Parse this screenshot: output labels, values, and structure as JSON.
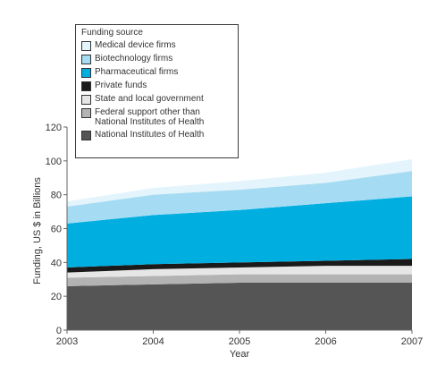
{
  "chart_data": {
    "type": "area",
    "stacked": true,
    "x": [
      "2003",
      "2004",
      "2005",
      "2006",
      "2007"
    ],
    "xlabel": "Year",
    "ylabel": "Funding, US $ in Billions",
    "ylim": [
      0,
      120
    ],
    "yticks": [
      "0",
      "20",
      "40",
      "60",
      "80",
      "100",
      "120"
    ],
    "grid": false,
    "legend_title": "Funding source",
    "legend_position": "top-left",
    "series": [
      {
        "name": "National Institutes of Health",
        "color": "#555555",
        "values": [
          26,
          27,
          28,
          28,
          28
        ]
      },
      {
        "name": "Federal support other than National Institutes of Health",
        "color": "#b3b3b3",
        "values": [
          5,
          5,
          5,
          5,
          5
        ]
      },
      {
        "name": "State and local government",
        "color": "#e6e6e6",
        "values": [
          3,
          4,
          4,
          5,
          5
        ]
      },
      {
        "name": "Private funds",
        "color": "#1a1a1a",
        "values": [
          3,
          3,
          3,
          3,
          4
        ]
      },
      {
        "name": "Pharmaceutical firms",
        "color": "#00aee0",
        "values": [
          26,
          29,
          31,
          34,
          37
        ]
      },
      {
        "name": "Biotechnology firms",
        "color": "#a6dcf3",
        "values": [
          10,
          12,
          12,
          12,
          15
        ]
      },
      {
        "name": "Medical device firms",
        "color": "#e3f4fc",
        "values": [
          3,
          4,
          5,
          6,
          7
        ]
      }
    ],
    "legend_order": [
      "Medical device firms",
      "Biotechnology firms",
      "Pharmaceutical firms",
      "Private funds",
      "State and local government",
      "Federal support other than National Institutes of Health",
      "National Institutes of Health"
    ],
    "legend_lines": {
      "Federal support other than National Institutes of Health": [
        "Federal support other than",
        "National Institutes of Health"
      ]
    }
  }
}
